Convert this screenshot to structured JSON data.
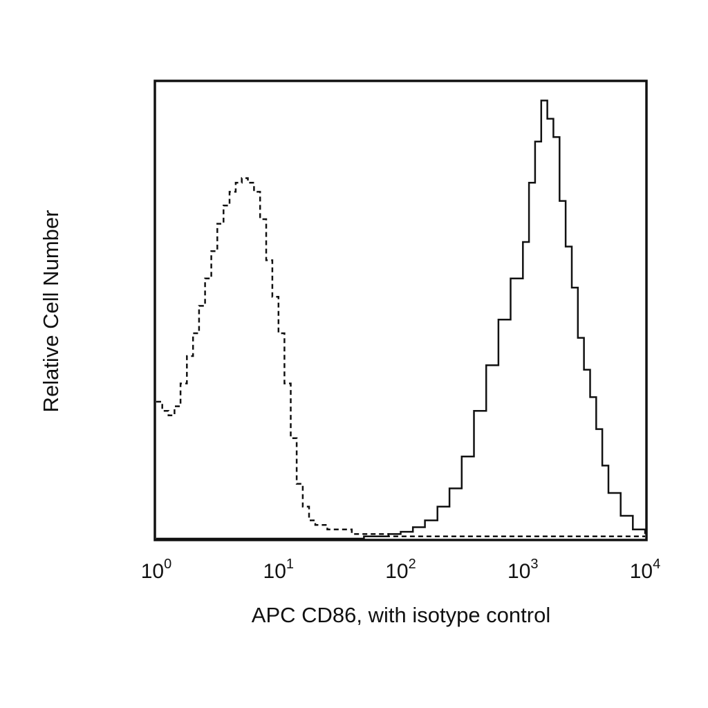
{
  "chart_data": {
    "type": "line",
    "title": "",
    "xlabel": "APC CD86, with isotype control",
    "ylabel": "Relative Cell Number",
    "x_scale": "log",
    "xlim": [
      1,
      10000
    ],
    "ylim": [
      0,
      100
    ],
    "x_ticks": [
      {
        "value": 1,
        "base": "10",
        "exp": "0"
      },
      {
        "value": 10,
        "base": "10",
        "exp": "1"
      },
      {
        "value": 100,
        "base": "10",
        "exp": "2"
      },
      {
        "value": 1000,
        "base": "10",
        "exp": "3"
      },
      {
        "value": 10000,
        "base": "10",
        "exp": "4"
      }
    ],
    "grid": false,
    "legend": "none",
    "series": [
      {
        "style": "dashed",
        "color": "#111111",
        "x": [
          1.0,
          1.12,
          1.26,
          1.41,
          1.58,
          1.78,
          2.0,
          2.24,
          2.51,
          2.82,
          3.16,
          3.55,
          3.98,
          4.47,
          5.01,
          5.62,
          6.31,
          7.08,
          7.94,
          8.91,
          10.0,
          11.2,
          12.6,
          14.1,
          15.8,
          17.8,
          20.0,
          25.1,
          31.6,
          39.8,
          50.1,
          63.1,
          79.4,
          100,
          126,
          158,
          200,
          251,
          316,
          398,
          501,
          631,
          794,
          1000,
          1259,
          1585,
          1995,
          2512,
          3162,
          3981,
          5012,
          6310,
          7943,
          10000
        ],
        "y": [
          30,
          28,
          27,
          29,
          34,
          40,
          45,
          51,
          57,
          63,
          69,
          73,
          76,
          78,
          79,
          78,
          76,
          70,
          61,
          53,
          45,
          34,
          22,
          12,
          7,
          4,
          3,
          2,
          2,
          1,
          1,
          1,
          0.5,
          0.5,
          0.5,
          0.5,
          0.5,
          0.5,
          0.5,
          0.5,
          0.5,
          0.5,
          0.5,
          0.5,
          0.5,
          0.5,
          0.5,
          0.5,
          0.5,
          0.5,
          0.5,
          0.5,
          0.5,
          0.5
        ]
      },
      {
        "style": "solid",
        "color": "#111111",
        "x": [
          1.0,
          10.0,
          20.0,
          31.6,
          50.1,
          79.4,
          100,
          126,
          158,
          200,
          251,
          316,
          398,
          501,
          631,
          794,
          1000,
          1122,
          1259,
          1413,
          1585,
          1778,
          1995,
          2239,
          2512,
          2818,
          3162,
          3548,
          3981,
          4467,
          5012,
          6310,
          7943,
          10000
        ],
        "y": [
          0,
          0,
          0,
          0,
          0.5,
          1,
          1.5,
          2.5,
          4,
          7,
          11,
          18,
          28,
          38,
          48,
          57,
          65,
          78,
          87,
          96,
          92,
          88,
          74,
          64,
          55,
          44,
          37,
          31,
          24,
          16,
          10,
          5,
          2,
          1
        ]
      }
    ]
  }
}
